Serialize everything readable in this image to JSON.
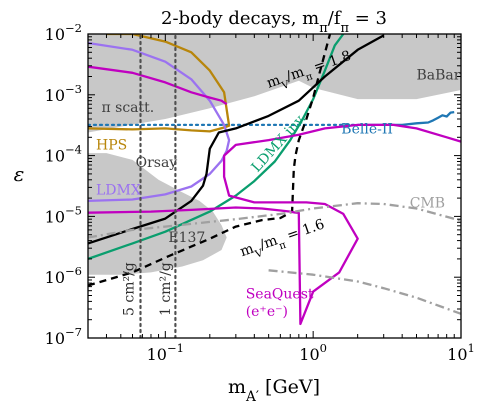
{
  "chart_data": {
    "type": "line",
    "title": "2-body decays, m_π/f_π = 3",
    "xlabel": "m_A' [GeV]",
    "ylabel": "ε",
    "xscale": "log",
    "yscale": "log",
    "xlim": [
      0.03,
      10
    ],
    "ylim": [
      1e-07,
      0.01
    ],
    "grid": false,
    "x_ticks": [
      {
        "value": 0.1,
        "label": "10^-1"
      },
      {
        "value": 1,
        "label": "10^0"
      },
      {
        "value": 10,
        "label": "10^1"
      }
    ],
    "y_ticks": [
      {
        "value": 1e-07,
        "label": "10^-7"
      },
      {
        "value": 1e-06,
        "label": "10^-6"
      },
      {
        "value": 1e-05,
        "label": "10^-5"
      },
      {
        "value": 0.0001,
        "label": "10^-4"
      },
      {
        "value": 0.001,
        "label": "10^-3"
      },
      {
        "value": 0.01,
        "label": "10^-2"
      }
    ],
    "shaded_regions": [
      {
        "name": "BaBar",
        "color": "#c8c8c8",
        "points": [
          [
            0.2,
            0.01
          ],
          [
            0.3,
            0.0045
          ],
          [
            0.5,
            0.003
          ],
          [
            1,
            0.0013
          ],
          [
            2,
            0.00085
          ],
          [
            5,
            0.00085
          ],
          [
            10,
            0.0012
          ],
          [
            10,
            0.01
          ]
        ]
      },
      {
        "name": "π scatt.",
        "color": "#c8c8c8",
        "points": [
          [
            0.03,
            0.01
          ],
          [
            0.03,
            0.00024
          ],
          [
            0.05,
            0.0003
          ],
          [
            0.1,
            0.0004
          ],
          [
            0.2,
            0.0006
          ],
          [
            0.4,
            0.00095
          ],
          [
            0.8,
            0.0017
          ],
          [
            1.1,
            0.0022
          ],
          [
            1.2,
            0.01
          ]
        ]
      },
      {
        "name": "Orsay / E137",
        "color": "#c8c8c8",
        "points": [
          [
            0.03,
            0.00011
          ],
          [
            0.04,
            0.00011
          ],
          [
            0.06,
            8.5e-05
          ],
          [
            0.09,
            4e-05
          ],
          [
            0.13,
            2.5e-05
          ],
          [
            0.17,
            1.8e-05
          ],
          [
            0.21,
            1.2e-05
          ],
          [
            0.24,
            7.2e-06
          ],
          [
            0.26,
            4.5e-06
          ],
          [
            0.24,
            2.8e-06
          ],
          [
            0.18,
            1.9e-06
          ],
          [
            0.13,
            1.5e-06
          ],
          [
            0.08,
            1.2e-06
          ],
          [
            0.05,
            1.1e-06
          ],
          [
            0.03,
            1.1e-06
          ]
        ]
      }
    ],
    "series": [
      {
        "name": "Belle-II",
        "color": "#1f77b4",
        "style": "solid",
        "x": [
          2.2,
          4,
          5,
          6,
          6.5,
          7,
          7.5,
          8,
          8.5,
          9
        ],
        "y": [
          0.00032,
          0.00032,
          0.00034,
          0.00035,
          0.00038,
          0.00042,
          0.00046,
          0.00044,
          0.00051,
          0.00052
        ]
      },
      {
        "name": "Belle-II (projection)",
        "color": "#1f77b4",
        "style": "dotted",
        "x": [
          0.03,
          2.2
        ],
        "y": [
          0.00032,
          0.00032
        ]
      },
      {
        "name": "HPS",
        "color": "#b8860b",
        "style": "solid",
        "x": [
          0.03,
          0.06,
          0.1,
          0.15,
          0.2,
          0.25,
          0.27,
          0.25,
          0.2,
          0.15,
          0.1,
          0.06,
          0.04
        ],
        "y": [
          0.00028,
          0.00027,
          0.00028,
          0.00026,
          0.00025,
          0.00029,
          0.00031,
          0.0011,
          0.0025,
          0.005,
          0.0075,
          0.01,
          0.01
        ]
      },
      {
        "name": "LDMX",
        "color": "#9b72f0",
        "style": "solid",
        "x": [
          0.03,
          0.06,
          0.1,
          0.15,
          0.2,
          0.24,
          0.26,
          0.27,
          0.25,
          0.2,
          0.15,
          0.1,
          0.06,
          0.03
        ],
        "y": [
          1.8e-05,
          1.9e-05,
          2.3e-05,
          3.1e-05,
          5e-05,
          8.2e-05,
          0.00012,
          0.00018,
          0.00032,
          0.0008,
          0.0018,
          0.0035,
          0.0055,
          0.0071
        ]
      },
      {
        "name": "LDMX inv.",
        "color": "#0a9e6e",
        "style": "solid",
        "x": [
          0.03,
          0.06,
          0.1,
          0.2,
          0.3,
          0.4,
          0.55,
          0.7,
          0.85,
          1,
          1.2,
          1.4,
          1.6
        ],
        "y": [
          2e-06,
          3.6e-06,
          5.6e-06,
          1.2e-05,
          2.2e-05,
          3.8e-05,
          8e-05,
          0.00018,
          0.0004,
          0.00085,
          0.0025,
          0.0065,
          0.01
        ]
      },
      {
        "name": "m_V/m_π = 1.8",
        "color": "#000000",
        "style": "solid",
        "x": [
          0.03,
          0.06,
          0.1,
          0.15,
          0.18,
          0.19,
          0.2,
          0.23,
          0.3,
          0.5,
          0.8,
          1.2,
          2,
          3
        ],
        "y": [
          3.6e-06,
          6.2e-06,
          9.2e-06,
          1.8e-05,
          3.2e-05,
          5e-05,
          0.00013,
          0.00024,
          0.00028,
          0.00045,
          0.0008,
          0.002,
          0.0055,
          0.0095
        ]
      },
      {
        "name": "m_V/m_π = 1.6",
        "color": "#000000",
        "style": "dashed",
        "x": [
          0.03,
          0.06,
          0.1,
          0.2,
          0.3,
          0.45,
          0.6,
          0.72,
          0.74,
          0.76,
          0.8,
          0.9,
          1,
          1.1,
          1.3
        ],
        "y": [
          7.3e-07,
          1.2e-06,
          2.1e-06,
          4.3e-06,
          6.8e-06,
          8.7e-06,
          9.4e-06,
          1.2e-05,
          6e-05,
          0.0001,
          0.00018,
          0.0004,
          0.0009,
          0.0022,
          0.01
        ]
      },
      {
        "name": "SeaQuest (e⁺e⁻)",
        "color": "#c000c0",
        "style": "solid",
        "x": [
          0.03,
          0.08,
          0.15,
          0.3,
          0.45,
          0.6,
          0.7,
          0.75,
          0.8,
          0.82,
          1,
          1.5,
          2,
          1.6,
          1.2,
          0.9,
          0.6,
          0.4,
          0.27,
          0.25,
          0.25,
          0.3,
          0.5,
          0.8,
          1.2,
          2,
          3.5,
          5,
          8,
          10
        ],
        "y": [
          1.15e-05,
          1.2e-05,
          1.28e-05,
          1.4e-05,
          1.35e-05,
          1.25e-05,
          1.2e-05,
          1.16e-05,
          1.14e-05,
          1.7e-07,
          5.8e-07,
          1.2e-06,
          4.3e-06,
          1.1e-05,
          1.6e-05,
          1.7e-05,
          1.7e-05,
          1.7e-05,
          2.2e-05,
          4.5e-05,
          0.0001,
          0.00015,
          0.00018,
          0.00022,
          0.00028,
          0.00032,
          0.00032,
          0.00028,
          0.0002,
          0.00017
        ]
      },
      {
        "name": "SeaQuest upper",
        "color": "#c000c0",
        "style": "solid",
        "x": [
          0.03,
          0.06,
          0.1,
          0.15,
          0.2,
          0.24,
          0.26
        ],
        "y": [
          0.0029,
          0.0023,
          0.0016,
          0.0011,
          0.0009,
          0.0008,
          0.0007
        ]
      },
      {
        "name": "CMB",
        "color": "#a0a0a0",
        "style": "dashdot",
        "x": [
          0.03,
          0.06,
          0.1,
          0.3,
          0.6,
          1,
          2,
          3,
          5,
          10
        ],
        "y": [
          4.5e-06,
          6e-06,
          6.8e-06,
          9e-06,
          1.1e-05,
          1.35e-05,
          1.65e-05,
          1.6e-05,
          1.35e-05,
          8.5e-06
        ]
      },
      {
        "name": "CMB (lower)",
        "color": "#a0a0a0",
        "style": "dashdot",
        "x": [
          0.5,
          1,
          2,
          3,
          5,
          10
        ],
        "y": [
          1.3e-06,
          1.1e-06,
          8.5e-07,
          6.6e-07,
          4.6e-07,
          2.5e-07
        ]
      },
      {
        "name": "5 cm²/g",
        "color": "#505050",
        "style": "dotted",
        "x": [
          0.068,
          0.068
        ],
        "y": [
          1e-07,
          0.01
        ]
      },
      {
        "name": "1 cm²/g",
        "color": "#505050",
        "style": "dotted",
        "x": [
          0.117,
          0.117
        ],
        "y": [
          1e-07,
          0.01
        ]
      }
    ],
    "annotations": [
      {
        "text": "BaBar",
        "x": 5.0,
        "y": 0.0018,
        "color": "#404040"
      },
      {
        "text": "π scatt.",
        "x": 0.037,
        "y": 0.00052,
        "color": "#404040"
      },
      {
        "text": "HPS",
        "x": 0.034,
        "y": 0.000125,
        "color": "#b8860b"
      },
      {
        "text": "Orsay",
        "x": 0.063,
        "y": 6.5e-05,
        "color": "#404040"
      },
      {
        "text": "LDMX",
        "x": 0.034,
        "y": 2.3e-05,
        "color": "#9b72f0"
      },
      {
        "text": "Belle-II",
        "x": 1.55,
        "y": 0.00023,
        "color": "#1f77b4"
      },
      {
        "text": "CMB",
        "x": 4.5,
        "y": 1.4e-05,
        "color": "#a0a0a0"
      },
      {
        "text": "E137",
        "x": 0.105,
        "y": 3.8e-06,
        "color": "#404040"
      },
      {
        "text": "SeaQuest",
        "x": 0.35,
        "y": 4.5e-07,
        "color": "#c000c0"
      },
      {
        "text": "(e⁺e⁻)",
        "x": 0.35,
        "y": 2.3e-07,
        "color": "#c000c0"
      },
      {
        "text": "LDMX inv.",
        "x": 0.42,
        "y": 5.2e-05,
        "color": "#0a9e6e",
        "rotate": -48
      },
      {
        "text": "m_V/m_π = 1.8",
        "x": 0.5,
        "y": 0.0013,
        "color": "#000000",
        "rotate": -19
      },
      {
        "text": "m_V/m_π = 1.6",
        "x": 0.33,
        "y": 2.2e-06,
        "color": "#000000",
        "rotate": -19
      },
      {
        "text": "5 cm²/g",
        "x": 0.061,
        "y": 2.3e-07,
        "color": "#303030",
        "rotate": -90
      },
      {
        "text": "1 cm²/g",
        "x": 0.108,
        "y": 2.3e-07,
        "color": "#303030",
        "rotate": -90
      }
    ]
  }
}
